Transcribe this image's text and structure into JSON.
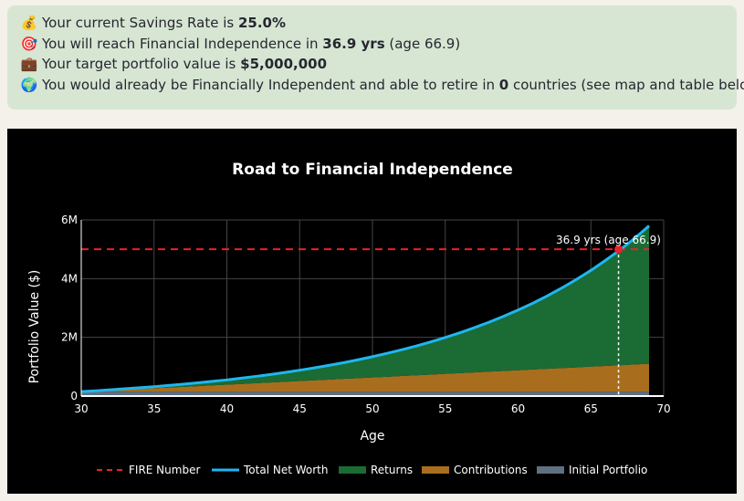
{
  "summary": {
    "line1": {
      "icon": "money-bag-icon",
      "prefix": "Your current Savings Rate is ",
      "value": "25.0%",
      "suffix": ""
    },
    "line2": {
      "icon": "target-icon",
      "prefix": "You will reach Financial Independence in ",
      "value": "36.9 yrs",
      "suffix": " (age 66.9)"
    },
    "line3": {
      "icon": "briefcase-icon",
      "prefix": "Your target portfolio value is ",
      "value": "$5,000,000",
      "suffix": ""
    },
    "line4": {
      "icon": "globe-icon",
      "prefix": "You would already be Financially Independent and able to retire in ",
      "value": "0",
      "suffix": " countries (see map and table below)"
    }
  },
  "chart_data": {
    "type": "area",
    "title": "Road to Financial Independence",
    "xlabel": "Age",
    "ylabel": "Portfolio Value ($)",
    "xlim": [
      30,
      70
    ],
    "ylim": [
      0,
      6000000
    ],
    "x_ticks": [
      30,
      35,
      40,
      45,
      50,
      55,
      60,
      65,
      70
    ],
    "y_ticks": [
      0,
      2000000,
      4000000,
      6000000
    ],
    "y_tick_labels": [
      "0",
      "2M",
      "4M",
      "6M"
    ],
    "grid": true,
    "legend_position": "bottom",
    "colors": {
      "fire": "#e8232a",
      "net_worth": "#1fb6f0",
      "returns": "#1b6b35",
      "contributions": "#a86e1e",
      "initial": "#5f7080"
    },
    "x": [
      30,
      31,
      32,
      33,
      34,
      35,
      36,
      37,
      38,
      39,
      40,
      41,
      42,
      43,
      44,
      45,
      46,
      47,
      48,
      49,
      50,
      51,
      52,
      53,
      54,
      55,
      56,
      57,
      58,
      59,
      60,
      61,
      62,
      63,
      64,
      65,
      66,
      67,
      68,
      69
    ],
    "series": [
      {
        "name": "FIRE Number",
        "values": [
          5000000,
          5000000,
          5000000,
          5000000,
          5000000,
          5000000,
          5000000,
          5000000,
          5000000,
          5000000,
          5000000,
          5000000,
          5000000,
          5000000,
          5000000,
          5000000,
          5000000,
          5000000,
          5000000,
          5000000,
          5000000,
          5000000,
          5000000,
          5000000,
          5000000,
          5000000,
          5000000,
          5000000,
          5000000,
          5000000,
          5000000,
          5000000,
          5000000,
          5000000,
          5000000,
          5000000,
          5000000,
          5000000,
          5000000,
          5000000
        ]
      },
      {
        "name": "Total Net Worth",
        "values": [
          150000,
          180000,
          215000,
          250000,
          285000,
          320000,
          360000,
          405000,
          450000,
          500000,
          550000,
          610000,
          670000,
          735000,
          805000,
          880000,
          960000,
          1045000,
          1135000,
          1235000,
          1340000,
          1455000,
          1575000,
          1705000,
          1845000,
          1995000,
          2155000,
          2330000,
          2515000,
          2715000,
          2930000,
          3160000,
          3410000,
          3680000,
          3970000,
          4280000,
          4620000,
          4980000,
          5370000,
          5800000
        ]
      },
      {
        "name": "Returns",
        "values": [
          0,
          7500,
          19000,
          30500,
          42000,
          53500,
          69000,
          89500,
          110000,
          135500,
          161000,
          196500,
          232000,
          272500,
          318000,
          368500,
          424000,
          484500,
          550000,
          625500,
          706000,
          796500,
          892000,
          997500,
          1113000,
          1238500,
          1374000,
          1524500,
          1685000,
          1860500,
          2051000,
          2256500,
          2482000,
          2727500,
          2993000,
          3278500,
          3594000,
          3929500,
          4295000,
          4700500
        ]
      },
      {
        "name": "Contributions",
        "values": [
          0,
          22500,
          46000,
          69500,
          93000,
          116500,
          141000,
          165500,
          190000,
          214500,
          239000,
          263500,
          288000,
          312500,
          337000,
          361500,
          386000,
          410500,
          435000,
          459500,
          484000,
          508500,
          533000,
          557500,
          582000,
          606500,
          631000,
          655500,
          680000,
          704500,
          729000,
          753500,
          778000,
          802500,
          827000,
          851500,
          876000,
          900500,
          925000,
          949500
        ]
      },
      {
        "name": "Initial Portfolio",
        "values": [
          150000,
          150000,
          150000,
          150000,
          150000,
          150000,
          150000,
          150000,
          150000,
          150000,
          150000,
          150000,
          150000,
          150000,
          150000,
          150000,
          150000,
          150000,
          150000,
          150000,
          150000,
          150000,
          150000,
          150000,
          150000,
          150000,
          150000,
          150000,
          150000,
          150000,
          150000,
          150000,
          150000,
          150000,
          150000,
          150000,
          150000,
          150000,
          150000,
          150000
        ]
      }
    ],
    "annotation": {
      "text": "36.9 yrs (age 66.9)",
      "x": 66.9,
      "y": 5000000
    }
  }
}
